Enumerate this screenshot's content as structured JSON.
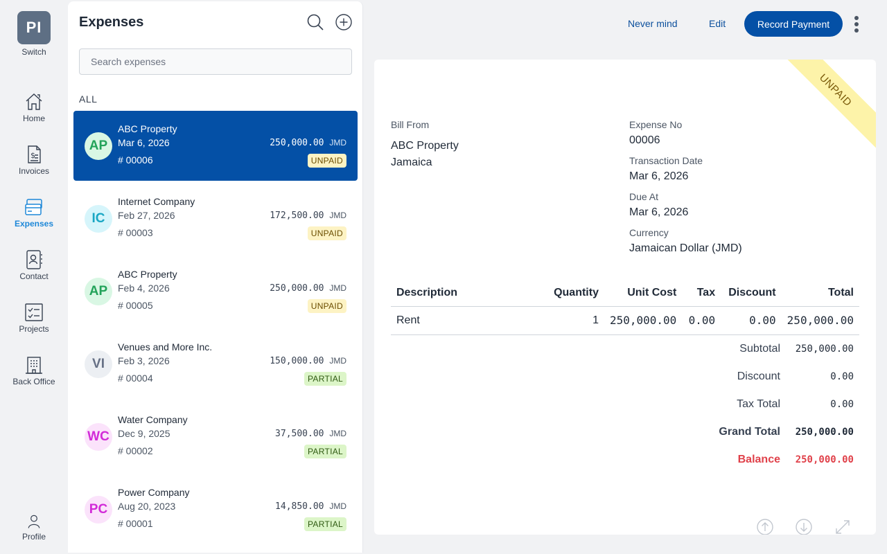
{
  "rail": {
    "switch_initials": "PI",
    "switch_label": "Switch",
    "items": [
      {
        "label": "Home",
        "icon": "home-icon"
      },
      {
        "label": "Invoices",
        "icon": "invoice-icon"
      },
      {
        "label": "Expenses",
        "icon": "credit-card-icon",
        "active": true
      },
      {
        "label": "Contact",
        "icon": "contact-book-icon"
      },
      {
        "label": "Projects",
        "icon": "checklist-icon"
      },
      {
        "label": "Back Office",
        "icon": "building-icon"
      }
    ],
    "profile_label": "Profile"
  },
  "list": {
    "title": "Expenses",
    "search_placeholder": "Search expenses",
    "filter_label": "ALL",
    "items": [
      {
        "initials": "AP",
        "name": "ABC Property",
        "date": "Mar 6, 2026",
        "number": "# 00006",
        "amount": "250,000.00",
        "currency": "JMD",
        "status": "UNPAID",
        "avatar_bg": "#d9f7e4",
        "avatar_fg": "#23a35a"
      },
      {
        "initials": "IC",
        "name": "Internet Company",
        "date": "Feb 27, 2026",
        "number": "# 00003",
        "amount": "172,500.00",
        "currency": "JMD",
        "status": "UNPAID",
        "avatar_bg": "#d6f5fb",
        "avatar_fg": "#1aa7c4"
      },
      {
        "initials": "AP",
        "name": "ABC Property",
        "date": "Feb 4, 2026",
        "number": "# 00005",
        "amount": "250,000.00",
        "currency": "JMD",
        "status": "UNPAID",
        "avatar_bg": "#d9f7e4",
        "avatar_fg": "#23a35a"
      },
      {
        "initials": "VI",
        "name": "Venues and More Inc.",
        "date": "Feb 3, 2026",
        "number": "# 00004",
        "amount": "150,000.00",
        "currency": "JMD",
        "status": "PARTIAL",
        "avatar_bg": "#eceff3",
        "avatar_fg": "#667085"
      },
      {
        "initials": "WC",
        "name": "Water Company",
        "date": "Dec 9, 2025",
        "number": "# 00002",
        "amount": "37,500.00",
        "currency": "JMD",
        "status": "PARTIAL",
        "avatar_bg": "#fbe3fb",
        "avatar_fg": "#d22bd8"
      },
      {
        "initials": "PC",
        "name": "Power Company",
        "date": "Aug 20, 2023",
        "number": "# 00001",
        "amount": "14,850.00",
        "currency": "JMD",
        "status": "PARTIAL",
        "avatar_bg": "#fbe3fb",
        "avatar_fg": "#d22bd8"
      }
    ]
  },
  "actions": {
    "never_mind": "Never mind",
    "edit": "Edit",
    "record_payment": "Record Payment"
  },
  "doc": {
    "ribbon": "UNPAID",
    "bill_from_label": "Bill From",
    "bill_from_name": "ABC Property",
    "bill_from_country": "Jamaica",
    "expense_no_label": "Expense No",
    "expense_no": "00006",
    "transaction_date_label": "Transaction Date",
    "transaction_date": "Mar 6, 2026",
    "due_at_label": "Due At",
    "due_at": "Mar 6, 2026",
    "currency_label": "Currency",
    "currency": "Jamaican Dollar (JMD)",
    "table": {
      "headers": {
        "description": "Description",
        "quantity": "Quantity",
        "unit_cost": "Unit Cost",
        "tax": "Tax",
        "discount": "Discount",
        "total": "Total"
      },
      "rows": [
        {
          "description": "Rent",
          "quantity": "1",
          "unit_cost": "250,000.00",
          "tax": "0.00",
          "discount": "0.00",
          "total": "250,000.00"
        }
      ]
    },
    "totals": {
      "subtotal_label": "Subtotal",
      "subtotal": "250,000.00",
      "discount_label": "Discount",
      "discount": "0.00",
      "tax_total_label": "Tax Total",
      "tax_total": "0.00",
      "grand_total_label": "Grand Total",
      "grand_total": "250,000.00",
      "balance_label": "Balance",
      "balance": "250,000.00"
    }
  },
  "colors": {
    "primary": "#0450a6",
    "accent_nav": "#1e88d8",
    "balance_red": "#e0414a",
    "unpaid_badge": "#fdf3c4",
    "partial_badge": "#dcf5c8"
  }
}
